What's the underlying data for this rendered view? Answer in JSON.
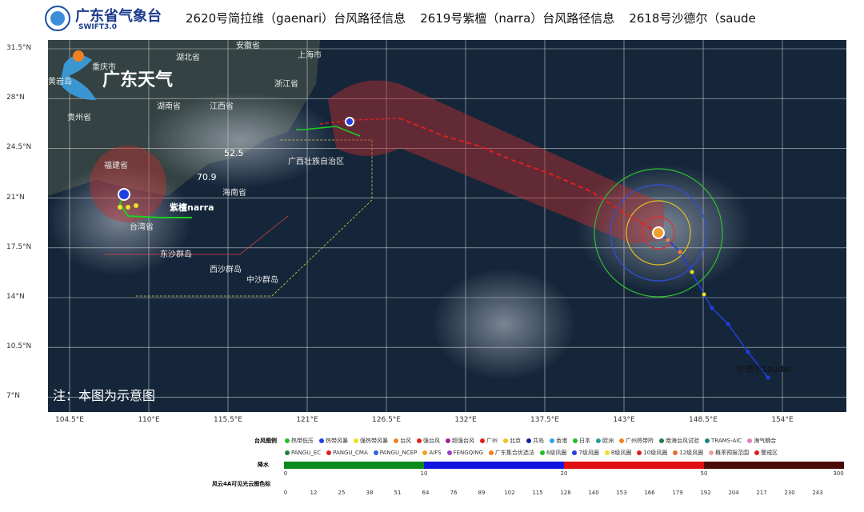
{
  "header": {
    "logo_title": "广东省气象台",
    "logo_subtitle": "SWIFT3.0",
    "ticker": [
      "2620号简拉维（gaenari）台风路径信息",
      "2619号紫檀（narra）台风路径信息",
      "2618号沙德尔（saude"
    ]
  },
  "map": {
    "brand": "广东天气",
    "lat_labels": [
      "31.5°N",
      "28°N",
      "24.5°N",
      "21°N",
      "17.5°N",
      "14°N",
      "10.5°N",
      "7°N"
    ],
    "lon_labels": [
      "104.5°E",
      "110°E",
      "115.5°E",
      "121°E",
      "126.5°E",
      "132°E",
      "137.5°E",
      "143°E",
      "148.5°E",
      "154°E"
    ],
    "places": [
      "重庆市",
      "湖北省",
      "安徽省",
      "上海市",
      "浙江省",
      "湖南省",
      "江西省",
      "贵州省",
      "福建省",
      "广西壮族自治区",
      "台湾省",
      "海南省",
      "东沙群岛",
      "西沙群岛",
      "中沙群岛",
      "黄岩岛"
    ],
    "typhoon_labels": [
      "紫檀narra",
      "沙德尔saudel"
    ],
    "readings": [
      "52.5",
      "70.9"
    ],
    "note": "注：本图为示意图"
  },
  "legend": {
    "title": "台风图例",
    "row1": [
      "热带低压",
      "热带风暴",
      "强热带风暴",
      "台风",
      "强台风",
      "超强台风",
      "广州",
      "北京",
      "共岛",
      "香港",
      "日本",
      "欧洲",
      "广州热带所",
      "南海台风试验",
      "TRAMS-AIC",
      "海气耦合"
    ],
    "row2": [
      "PANGU_EC",
      "PANGU_CMA",
      "PANGU_NCEP",
      "AIFS",
      "FENGQING",
      "广东集合优选法",
      "6级风圈",
      "7级风圈",
      "8级风圈",
      "10级风圈",
      "12级风圈",
      "概率预报范围",
      "警戒区"
    ],
    "precip_title": "降水",
    "precip_ticks": [
      "0",
      "10",
      "20",
      "50",
      "300"
    ],
    "cloud_title": "风云4A可见光云图色标",
    "cloud_ticks": [
      "0",
      "12",
      "25",
      "38",
      "51",
      "64",
      "76",
      "89",
      "102",
      "115",
      "128",
      "140",
      "153",
      "166",
      "179",
      "192",
      "204",
      "217",
      "230",
      "243"
    ]
  }
}
